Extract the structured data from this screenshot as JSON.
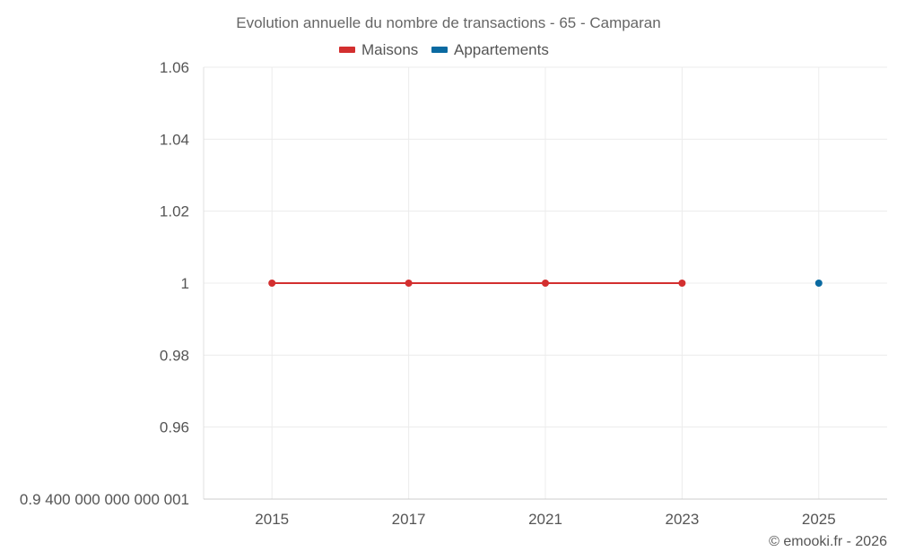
{
  "chart_data": {
    "type": "line",
    "title": "Evolution annuelle du nombre de transactions - 65 - Camparan",
    "categories": [
      "2015",
      "2017",
      "2021",
      "2023",
      "2025"
    ],
    "series": [
      {
        "name": "Maisons",
        "color": "#d32f2f",
        "values": [
          1,
          1,
          1,
          1,
          null
        ]
      },
      {
        "name": "Appartements",
        "color": "#0a6aa1",
        "values": [
          null,
          null,
          null,
          null,
          1
        ]
      }
    ],
    "ylim": [
      0.94,
      1.06
    ],
    "yticks": [
      {
        "value": 0.94,
        "label": "0.9 400 000 000 000 001"
      },
      {
        "value": 0.96,
        "label": "0.96"
      },
      {
        "value": 0.98,
        "label": "0.98"
      },
      {
        "value": 1.0,
        "label": "1"
      },
      {
        "value": 1.02,
        "label": "1.02"
      },
      {
        "value": 1.04,
        "label": "1.04"
      },
      {
        "value": 1.06,
        "label": "1.06"
      }
    ],
    "xlabel": "",
    "ylabel": "",
    "credit": "© emooki.fr - 2026",
    "grid": true,
    "legend_position": "top-center"
  }
}
